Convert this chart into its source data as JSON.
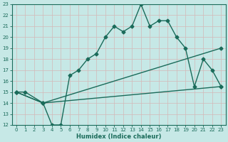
{
  "xlabel": "Humidex (Indice chaleur)",
  "xlim": [
    -0.5,
    23.5
  ],
  "ylim": [
    12,
    23
  ],
  "xticks": [
    0,
    1,
    2,
    3,
    4,
    5,
    6,
    7,
    8,
    9,
    10,
    11,
    12,
    13,
    14,
    15,
    16,
    17,
    18,
    19,
    20,
    21,
    22,
    23
  ],
  "yticks": [
    12,
    13,
    14,
    15,
    16,
    17,
    18,
    19,
    20,
    21,
    22,
    23
  ],
  "bg_color": "#c6e8e6",
  "line_color": "#1a6b5a",
  "grid_color": "#b0d4d0",
  "line1_x": [
    0,
    1,
    3,
    4,
    5,
    6,
    7,
    8,
    9,
    10,
    11,
    12,
    13,
    14,
    15,
    16,
    17,
    18,
    19,
    20,
    21,
    22,
    23
  ],
  "line1_y": [
    15,
    15,
    14,
    12,
    12,
    16.5,
    17,
    18,
    18.5,
    20,
    21,
    20.5,
    21,
    23,
    21,
    21.5,
    21.5,
    20,
    19,
    15.5,
    18,
    17,
    15.5
  ],
  "line2_x": [
    0,
    3,
    23
  ],
  "line2_y": [
    15,
    14,
    15.5
  ],
  "line3_x": [
    0,
    3,
    23
  ],
  "line3_y": [
    15,
    14,
    19
  ],
  "markersize": 2.5,
  "linewidth": 1.0
}
